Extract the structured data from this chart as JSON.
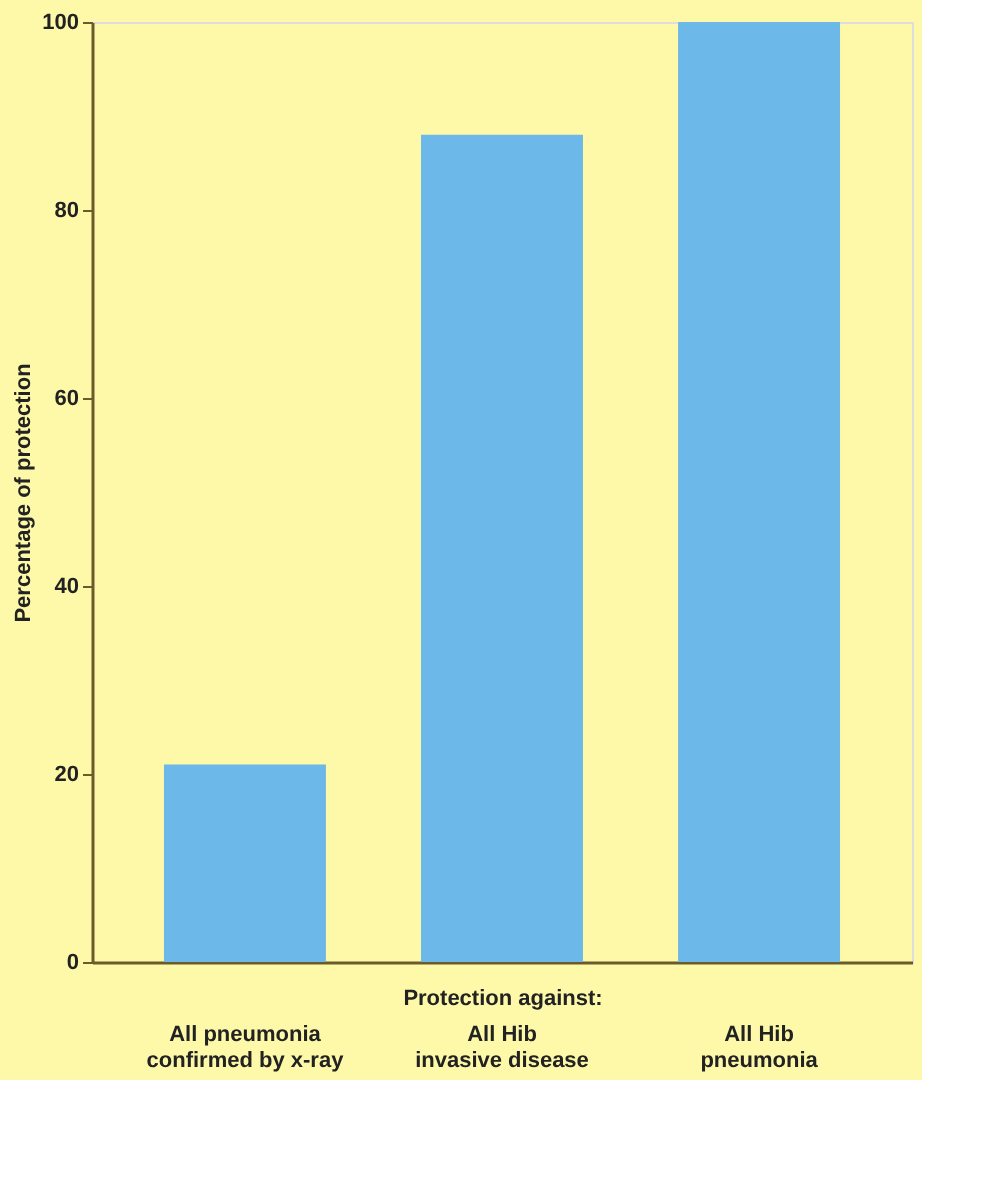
{
  "chart_data": {
    "type": "bar",
    "xlabel": "Protection against:",
    "ylabel": "Percentage of protection",
    "categories": [
      "All pneumonia\nconfirmed by x-ray",
      "All Hib\ninvasive disease",
      "All Hib\npneumonia"
    ],
    "values": [
      21,
      88,
      100
    ],
    "color": "#6cb8e8",
    "ylim": [
      0,
      100
    ],
    "yticks": [
      0,
      20,
      40,
      60,
      80,
      100
    ],
    "grid": false
  }
}
